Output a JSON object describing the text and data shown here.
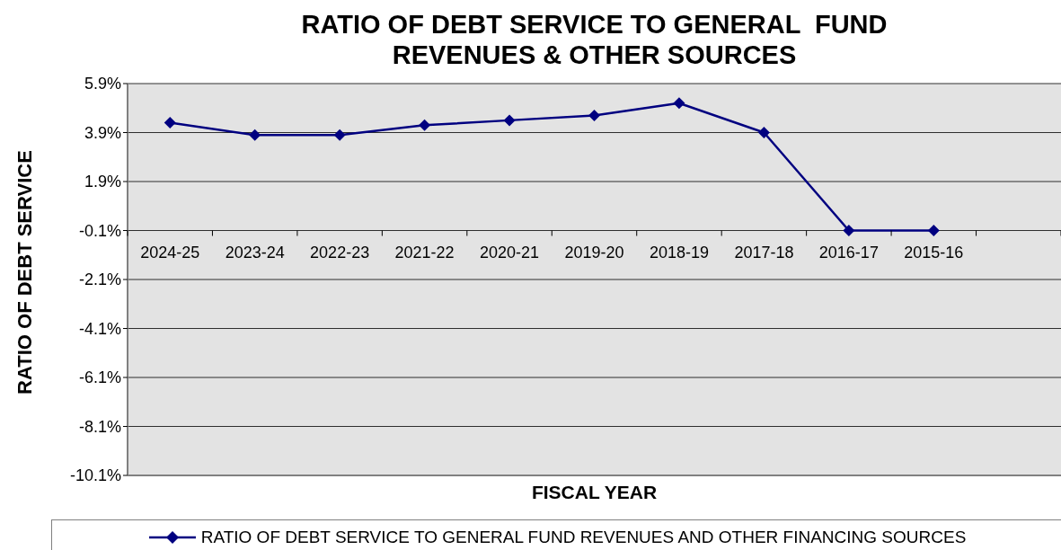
{
  "chart_data": {
    "type": "line",
    "title": "RATIO OF DEBT SERVICE TO GENERAL  FUND REVENUES & OTHER SOURCES",
    "xlabel": "FISCAL YEAR",
    "ylabel": "RATIO OF DEBT SERVICE",
    "categories": [
      "2024-25",
      "2023-24",
      "2022-23",
      "2021-22",
      "2020-21",
      "2019-20",
      "2018-19",
      "2017-18",
      "2016-17",
      "2015-16",
      null
    ],
    "series": [
      {
        "name": "RATIO OF DEBT SERVICE TO GENERAL FUND REVENUES AND OTHER FINANCING SOURCES",
        "color": "#000080",
        "values": [
          4.3,
          3.8,
          3.8,
          4.2,
          4.4,
          4.6,
          5.1,
          3.9,
          -0.1,
          -0.1,
          null
        ]
      }
    ],
    "ylim": [
      -10.1,
      5.9
    ],
    "yticks": [
      {
        "value": -10.1,
        "label": "-10.1%"
      },
      {
        "value": -8.1,
        "label": "-8.1%"
      },
      {
        "value": -6.1,
        "label": "-6.1%"
      },
      {
        "value": -4.1,
        "label": "-4.1%"
      },
      {
        "value": -2.1,
        "label": "-2.1%"
      },
      {
        "value": -0.1,
        "label": "-0.1%"
      },
      {
        "value": 1.9,
        "label": "1.9%"
      },
      {
        "value": 3.9,
        "label": "3.9%"
      },
      {
        "value": 5.9,
        "label": "5.9%"
      }
    ],
    "grid": "y",
    "legend": "bottom",
    "marker": "diamond",
    "line_style": "solid"
  }
}
